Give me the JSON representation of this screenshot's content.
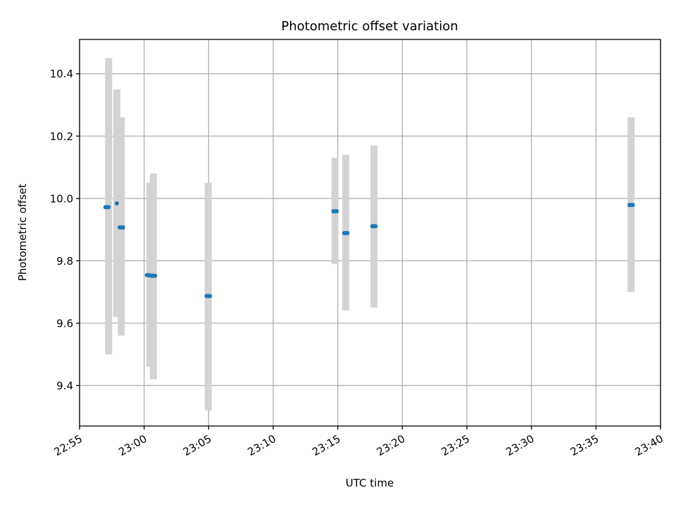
{
  "chart_data": {
    "type": "scatter",
    "title": "Photometric offset variation",
    "xlabel": "UTC time",
    "ylabel": "Photometric offset",
    "x_unit": "HH:MM",
    "xlim": [
      "22:55",
      "23:40"
    ],
    "ylim": [
      9.27,
      10.51
    ],
    "x_ticks": [
      "22:55",
      "23:00",
      "23:05",
      "23:10",
      "23:15",
      "23:20",
      "23:25",
      "23:30",
      "23:35",
      "23:40"
    ],
    "y_ticks": [
      9.4,
      9.6,
      9.8,
      10.0,
      10.2,
      10.4
    ],
    "y_tick_labels": [
      "9.4",
      "9.6",
      "9.8",
      "10.0",
      "10.2",
      "10.4"
    ],
    "grid": true,
    "colors": {
      "points": "#1f77b4",
      "errorbars": "#d3d3d3",
      "grid": "#b0b0b0"
    },
    "series": [
      {
        "points": [
          {
            "x": "22:57:00",
            "y": 9.972
          },
          {
            "x": "22:57:07",
            "y": 9.972
          },
          {
            "x": "22:57:15",
            "y": 9.972
          },
          {
            "x": "22:57:53",
            "y": 9.984
          },
          {
            "x": "22:58:06",
            "y": 9.907
          },
          {
            "x": "22:58:14",
            "y": 9.907
          },
          {
            "x": "22:58:22",
            "y": 9.907
          },
          {
            "x": "23:00:13",
            "y": 9.754
          },
          {
            "x": "23:00:20",
            "y": 9.754
          },
          {
            "x": "23:00:27",
            "y": 9.753
          },
          {
            "x": "23:00:36",
            "y": 9.752
          },
          {
            "x": "23:00:43",
            "y": 9.752
          },
          {
            "x": "23:00:51",
            "y": 9.752
          },
          {
            "x": "23:04:51",
            "y": 9.687
          },
          {
            "x": "23:04:58",
            "y": 9.687
          },
          {
            "x": "23:05:06",
            "y": 9.687
          },
          {
            "x": "23:14:40",
            "y": 9.959
          },
          {
            "x": "23:14:47",
            "y": 9.959
          },
          {
            "x": "23:14:55",
            "y": 9.959
          },
          {
            "x": "23:15:30",
            "y": 9.889
          },
          {
            "x": "23:15:37",
            "y": 9.889
          },
          {
            "x": "23:15:45",
            "y": 9.889
          },
          {
            "x": "23:17:41",
            "y": 9.911
          },
          {
            "x": "23:17:48",
            "y": 9.911
          },
          {
            "x": "23:17:56",
            "y": 9.911
          },
          {
            "x": "23:37:36",
            "y": 9.979
          },
          {
            "x": "23:37:43",
            "y": 9.979
          },
          {
            "x": "23:37:51",
            "y": 9.979
          }
        ],
        "errorbars": [
          {
            "x": "22:57:15",
            "low": 9.5,
            "high": 10.45
          },
          {
            "x": "22:57:53",
            "low": 9.62,
            "high": 10.35
          },
          {
            "x": "22:58:14",
            "low": 9.56,
            "high": 10.26
          },
          {
            "x": "23:00:27",
            "low": 9.46,
            "high": 10.05
          },
          {
            "x": "23:00:43",
            "low": 9.42,
            "high": 10.08
          },
          {
            "x": "23:04:58",
            "low": 9.32,
            "high": 10.05
          },
          {
            "x": "23:14:47",
            "low": 9.79,
            "high": 10.13
          },
          {
            "x": "23:15:37",
            "low": 9.64,
            "high": 10.14
          },
          {
            "x": "23:17:48",
            "low": 9.65,
            "high": 10.17
          },
          {
            "x": "23:37:43",
            "low": 9.7,
            "high": 10.26
          }
        ]
      }
    ]
  }
}
